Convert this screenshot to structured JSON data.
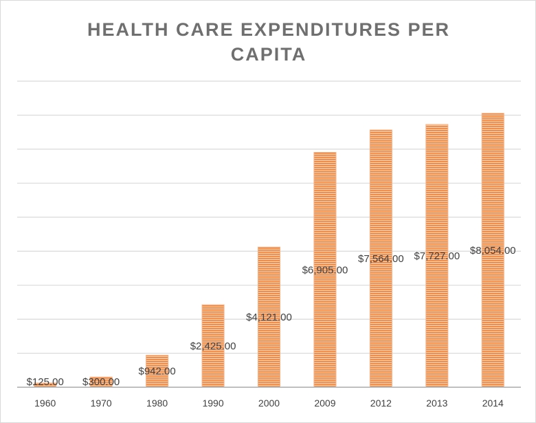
{
  "chart_data": {
    "type": "bar",
    "title": "HEALTH CARE EXPENDITURES PER CAPITA",
    "title_lines": [
      "HEALTH CARE EXPENDITURES PER",
      "CAPITA"
    ],
    "categories": [
      "1960",
      "1970",
      "1980",
      "1990",
      "2000",
      "2009",
      "2012",
      "2013",
      "2014"
    ],
    "values": [
      125,
      300,
      942,
      2425,
      4121,
      6905,
      7564,
      7727,
      8054
    ],
    "data_labels": [
      "$125.00",
      "$300.00",
      "$942.00",
      "$2,425.00",
      "$4,121.00",
      "$6,905.00",
      "$7,564.00",
      "$7,727.00",
      "$8,054.00"
    ],
    "xlabel": "",
    "ylabel": "",
    "ylim": [
      0,
      9000
    ],
    "ytick_step": 1000,
    "grid": true,
    "legend": "none",
    "bar_color": "#ed7d31"
  }
}
